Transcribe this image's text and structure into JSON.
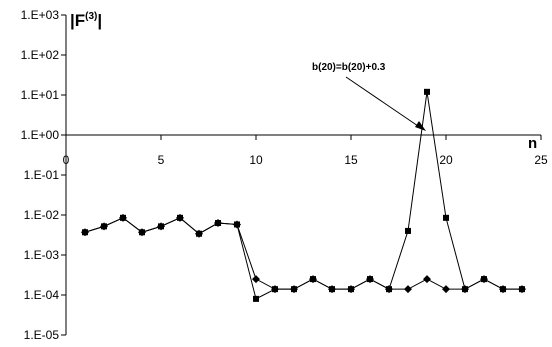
{
  "chart_data": {
    "type": "line",
    "y_scale": "log",
    "ylim": [
      1e-05,
      1000
    ],
    "xlim": [
      0,
      25
    ],
    "x_ticks": [
      "0",
      "5",
      "10",
      "15",
      "20",
      "25"
    ],
    "y_ticks": [
      "1.E+03",
      "1.E+02",
      "1.E+01",
      "1.E+00",
      "1.E-01",
      "1.E-02",
      "1.E-03",
      "1.E-04",
      "1.E-05"
    ],
    "ylabel": {
      "main": "|F",
      "sup": "(3)",
      "close": "|"
    },
    "xlabel": "n",
    "annotation": {
      "text": "b(20)=b(20)+0.3",
      "x": 19,
      "y": 12
    },
    "grid": false,
    "series": [
      {
        "marker": "diamond",
        "x": [
          1,
          2,
          3,
          4,
          5,
          6,
          7,
          8,
          9,
          10,
          11,
          12,
          13,
          14,
          15,
          16,
          17,
          18,
          19,
          20,
          21,
          22,
          23,
          24
        ],
        "y": [
          0.0037,
          0.0052,
          0.0085,
          0.0037,
          0.0052,
          0.0085,
          0.0034,
          0.0063,
          0.0058,
          0.00025,
          0.00014,
          0.00014,
          0.00025,
          0.00014,
          0.00014,
          0.00025,
          0.00014,
          0.00014,
          0.00025,
          0.00014,
          0.00014,
          0.00025,
          0.00014,
          0.00014
        ]
      },
      {
        "marker": "square",
        "x": [
          1,
          2,
          3,
          4,
          5,
          6,
          7,
          8,
          9,
          10,
          11,
          12,
          13,
          14,
          15,
          16,
          17,
          18,
          19,
          20,
          21,
          22,
          23,
          24
        ],
        "y": [
          0.0037,
          0.0052,
          0.0085,
          0.0037,
          0.0052,
          0.0085,
          0.0034,
          0.0063,
          0.0058,
          8e-05,
          0.00014,
          0.00014,
          0.00025,
          0.00014,
          0.00014,
          0.00025,
          0.00014,
          0.004,
          12,
          0.0085,
          0.00014,
          0.00025,
          0.00014,
          0.00014
        ]
      }
    ]
  }
}
